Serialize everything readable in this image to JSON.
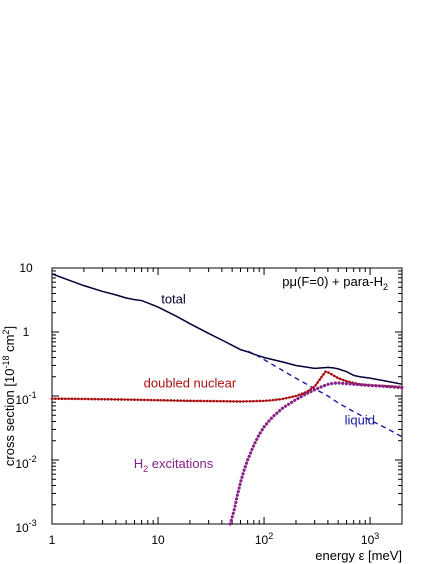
{
  "chart_data": {
    "type": "line",
    "title": "",
    "xlabel": "energy ε [meV]",
    "ylabel": {
      "main": "cross section [10",
      "exp": "-18",
      "unit": " cm",
      "unit_exp": "2",
      "close": "]"
    },
    "x_scale": "log",
    "y_scale": "log",
    "xlim": [
      1,
      2000
    ],
    "ylim": [
      0.001,
      10
    ],
    "grid": false,
    "x_ticks": [
      {
        "value": 1,
        "base": "1",
        "exp": ""
      },
      {
        "value": 10,
        "base": "10",
        "exp": ""
      },
      {
        "value": 100,
        "base": "10",
        "exp": "2"
      },
      {
        "value": 1000,
        "base": "10",
        "exp": "3"
      }
    ],
    "y_ticks": [
      {
        "value": 10,
        "base": "10",
        "exp": ""
      },
      {
        "value": 1,
        "base": "1",
        "exp": ""
      },
      {
        "value": 0.1,
        "base": "10",
        "exp": "-1"
      },
      {
        "value": 0.01,
        "base": "10",
        "exp": "-2"
      },
      {
        "value": 0.001,
        "base": "10",
        "exp": "-3"
      }
    ],
    "annotation": {
      "prefix": "pμ(F=0) + para-H",
      "sub": "2",
      "x": 700,
      "y": 5.2
    },
    "series": [
      {
        "name": "total",
        "label_x": 14,
        "label_y": 2.8,
        "color": "#000033",
        "style": "solid",
        "x": [
          1,
          1.5,
          2,
          3,
          4,
          5,
          6,
          7,
          8,
          10,
          15,
          20,
          30,
          40,
          50,
          60,
          70,
          80,
          100,
          150,
          200,
          300,
          350,
          400,
          450,
          500,
          600,
          700,
          800,
          1000,
          1500,
          2000
        ],
        "y": [
          8.1,
          6.3,
          5.3,
          4.3,
          3.8,
          3.4,
          3.2,
          3.1,
          2.85,
          2.45,
          1.75,
          1.35,
          0.95,
          0.75,
          0.62,
          0.53,
          0.49,
          0.45,
          0.4,
          0.34,
          0.3,
          0.27,
          0.275,
          0.28,
          0.275,
          0.265,
          0.24,
          0.21,
          0.2,
          0.19,
          0.168,
          0.153
        ]
      },
      {
        "name": "liquid",
        "label_x": 800,
        "label_y": 0.036,
        "color": "#1a1a99",
        "style": "dashed",
        "x": [
          70,
          80,
          100,
          150,
          200,
          300,
          400,
          500,
          700,
          1000,
          1500,
          2000
        ],
        "y": [
          0.5,
          0.46,
          0.37,
          0.25,
          0.19,
          0.13,
          0.1,
          0.078,
          0.057,
          0.042,
          0.03,
          0.023
        ]
      },
      {
        "name": "doubled nuclear",
        "label_x": 20,
        "label_y": 0.135,
        "color": "#aa1111",
        "style": "solid-dotted",
        "x": [
          1,
          2,
          5,
          10,
          20,
          40,
          60,
          80,
          100,
          120,
          150,
          200,
          250,
          300,
          350,
          380,
          400,
          450,
          500,
          600,
          700,
          800,
          1000,
          1500,
          2000
        ],
        "y": [
          0.091,
          0.09,
          0.088,
          0.086,
          0.084,
          0.083,
          0.082,
          0.083,
          0.084,
          0.086,
          0.09,
          0.1,
          0.115,
          0.14,
          0.2,
          0.24,
          0.235,
          0.21,
          0.19,
          0.17,
          0.16,
          0.152,
          0.148,
          0.142,
          0.138
        ]
      },
      {
        "name_main": "H",
        "name_sub": "2",
        "name_rest": " excitations",
        "label_x": 14,
        "label_y": 0.0075,
        "color": "#882288",
        "style": "dotted",
        "x": [
          48,
          52,
          56,
          60,
          65,
          70,
          80,
          90,
          100,
          120,
          150,
          200,
          250,
          300,
          350,
          400,
          450,
          500,
          600,
          800,
          1000,
          1500,
          2000
        ],
        "y": [
          0.001,
          0.0016,
          0.0028,
          0.0045,
          0.007,
          0.01,
          0.017,
          0.025,
          0.033,
          0.047,
          0.065,
          0.088,
          0.108,
          0.125,
          0.14,
          0.152,
          0.158,
          0.16,
          0.156,
          0.15,
          0.146,
          0.14,
          0.135
        ]
      }
    ]
  }
}
